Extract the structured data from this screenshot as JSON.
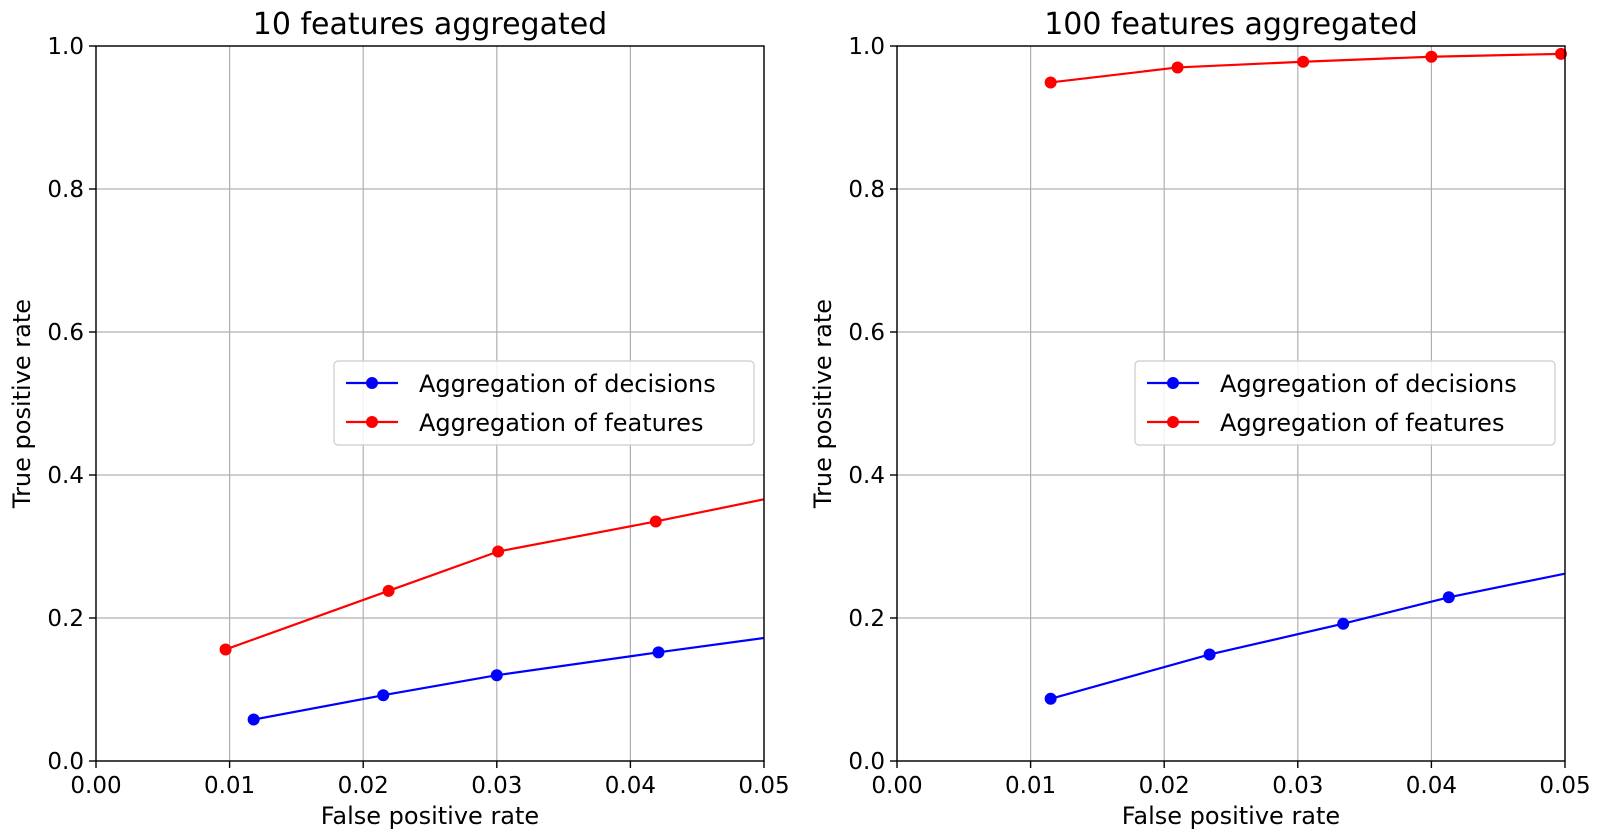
{
  "chart_data": [
    {
      "type": "line",
      "title": "10 features aggregated",
      "xlabel": "False positive rate",
      "ylabel": "True positive rate",
      "xlim": [
        0,
        0.05
      ],
      "ylim": [
        0,
        1.0
      ],
      "xticks": [
        0.0,
        0.01,
        0.02,
        0.03,
        0.04,
        0.05
      ],
      "xtick_labels": [
        "0.00",
        "0.01",
        "0.02",
        "0.03",
        "0.04",
        "0.05"
      ],
      "yticks": [
        0.0,
        0.2,
        0.4,
        0.6,
        0.8,
        1.0
      ],
      "ytick_labels": [
        "0.0",
        "0.2",
        "0.4",
        "0.6",
        "0.8",
        "1.0"
      ],
      "grid": true,
      "legend": "center-right",
      "series": [
        {
          "name": "Aggregation of decisions",
          "color": "#0000ff",
          "x": [
            0.0118,
            0.0215,
            0.03,
            0.0421
          ],
          "y": [
            0.058,
            0.092,
            0.12,
            0.152
          ],
          "line_extends_to": [
            0.05,
            0.172
          ]
        },
        {
          "name": "Aggregation of features",
          "color": "#ff0000",
          "x": [
            0.0097,
            0.0219,
            0.0301,
            0.0419
          ],
          "y": [
            0.156,
            0.238,
            0.293,
            0.335
          ],
          "line_extends_to": [
            0.05,
            0.366
          ]
        }
      ]
    },
    {
      "type": "line",
      "title": "100 features aggregated",
      "xlabel": "False positive rate",
      "ylabel": "True positive rate",
      "xlim": [
        0,
        0.05
      ],
      "ylim": [
        0,
        1.0
      ],
      "xticks": [
        0.0,
        0.01,
        0.02,
        0.03,
        0.04,
        0.05
      ],
      "xtick_labels": [
        "0.00",
        "0.01",
        "0.02",
        "0.03",
        "0.04",
        "0.05"
      ],
      "yticks": [
        0.0,
        0.2,
        0.4,
        0.6,
        0.8,
        1.0
      ],
      "ytick_labels": [
        "0.0",
        "0.2",
        "0.4",
        "0.6",
        "0.8",
        "1.0"
      ],
      "grid": true,
      "legend": "center-right",
      "series": [
        {
          "name": "Aggregation of decisions",
          "color": "#0000ff",
          "x": [
            0.0115,
            0.0234,
            0.0334,
            0.0413
          ],
          "y": [
            0.087,
            0.149,
            0.192,
            0.229
          ],
          "line_extends_to": [
            0.05,
            0.262
          ]
        },
        {
          "name": "Aggregation of features",
          "color": "#ff0000",
          "x": [
            0.0115,
            0.021,
            0.0304,
            0.04,
            0.0497
          ],
          "y": [
            0.949,
            0.97,
            0.978,
            0.985,
            0.989
          ],
          "line_extends_to": null
        }
      ]
    }
  ]
}
